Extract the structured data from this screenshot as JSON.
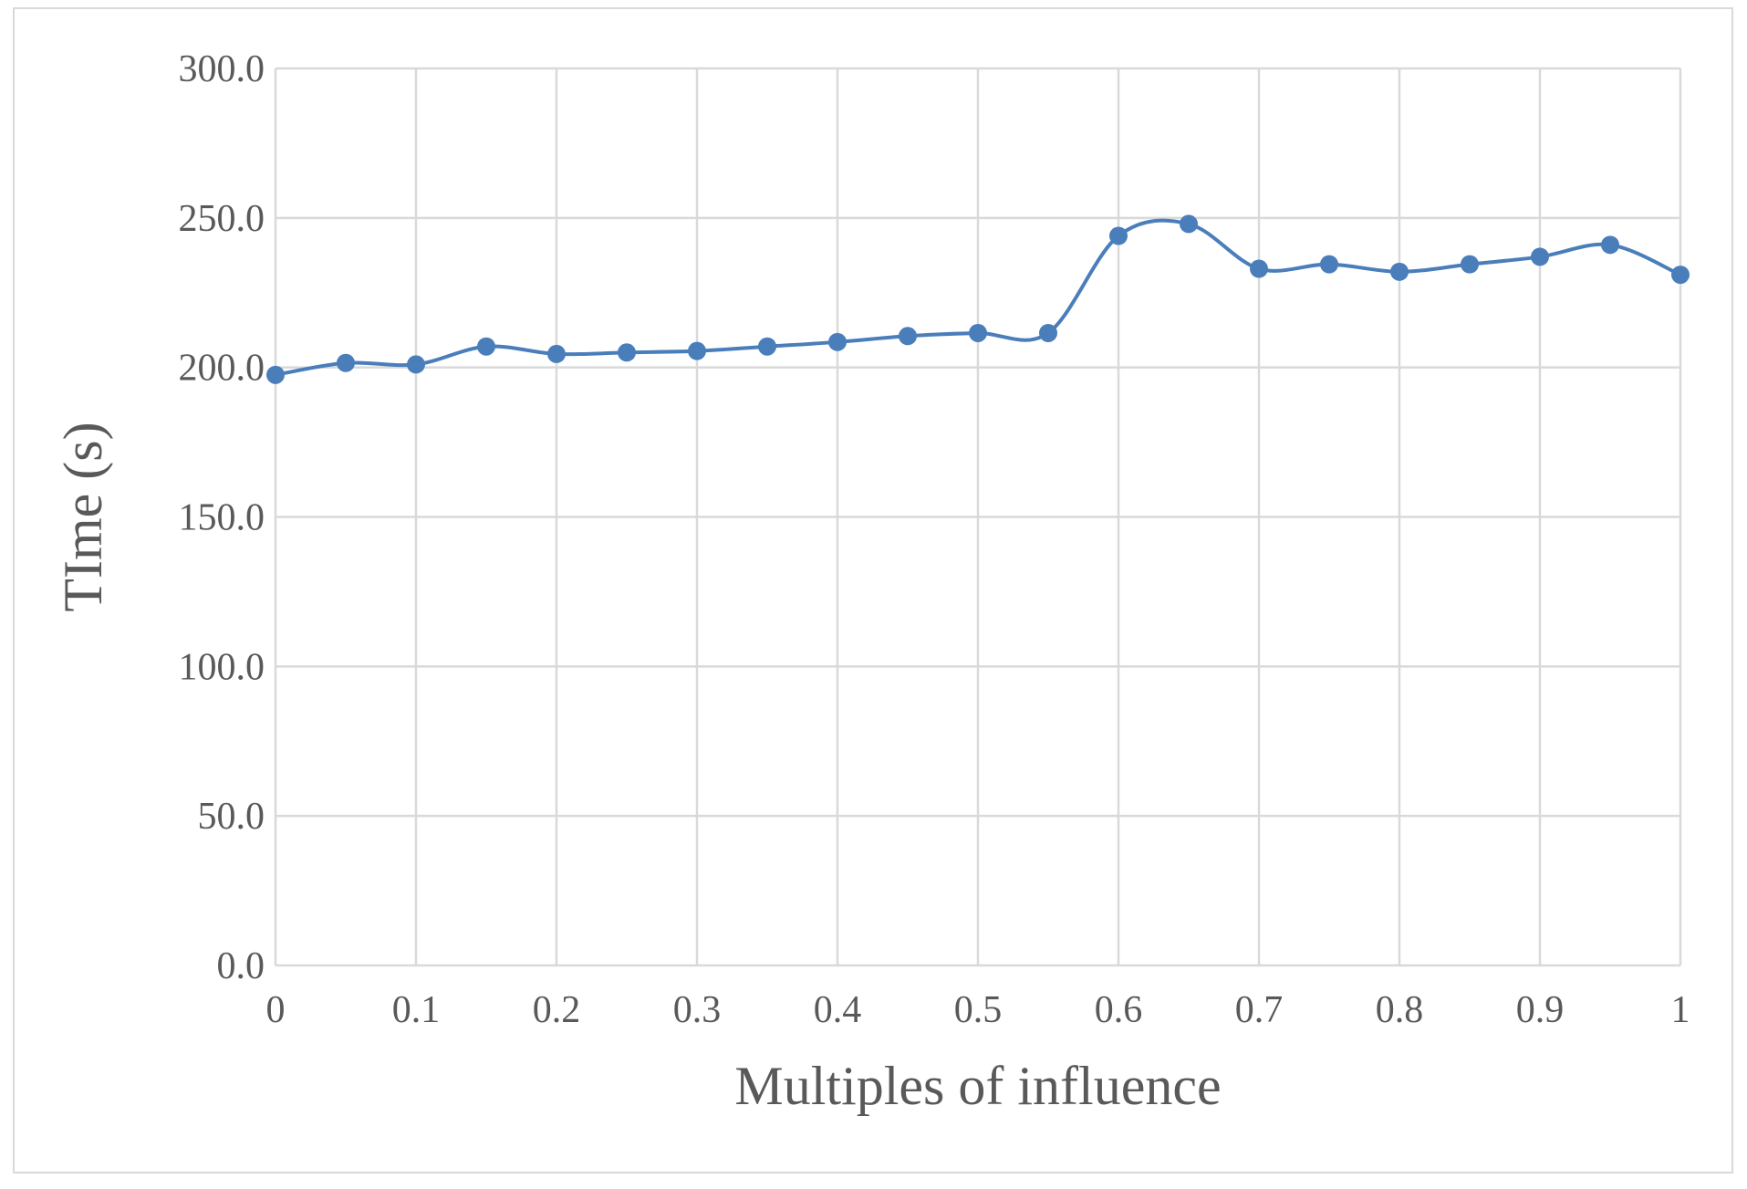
{
  "chart_data": {
    "type": "line",
    "smooth": true,
    "xlabel": "Multiples of influence",
    "ylabel": "TIme (s)",
    "xlim": [
      0,
      1
    ],
    "ylim": [
      0,
      300
    ],
    "grid": true,
    "legend": "none",
    "x_ticks": [
      0,
      0.1,
      0.2,
      0.3,
      0.4,
      0.5,
      0.6,
      0.7,
      0.8,
      0.9,
      1
    ],
    "x_tick_labels": [
      "0",
      "0.1",
      "0.2",
      "0.3",
      "0.4",
      "0.5",
      "0.6",
      "0.7",
      "0.8",
      "0.9",
      "1"
    ],
    "y_ticks": [
      0,
      50,
      100,
      150,
      200,
      250,
      300
    ],
    "y_tick_labels": [
      "0.0",
      "50.0",
      "100.0",
      "150.0",
      "200.0",
      "250.0",
      "300.0"
    ],
    "x": [
      0,
      0.05,
      0.1,
      0.15,
      0.2,
      0.25,
      0.3,
      0.35,
      0.4,
      0.45,
      0.5,
      0.55,
      0.6,
      0.65,
      0.7,
      0.75,
      0.8,
      0.85,
      0.9,
      0.95,
      1
    ],
    "series": [
      {
        "color": "#4a7ebb",
        "marker": "circle",
        "values": [
          197.5,
          201.5,
          201,
          207,
          204.5,
          205,
          205.5,
          207,
          208.5,
          210.5,
          211.5,
          211.5,
          244,
          248,
          233,
          234.5,
          232,
          234.5,
          237,
          241,
          231
        ]
      }
    ]
  }
}
